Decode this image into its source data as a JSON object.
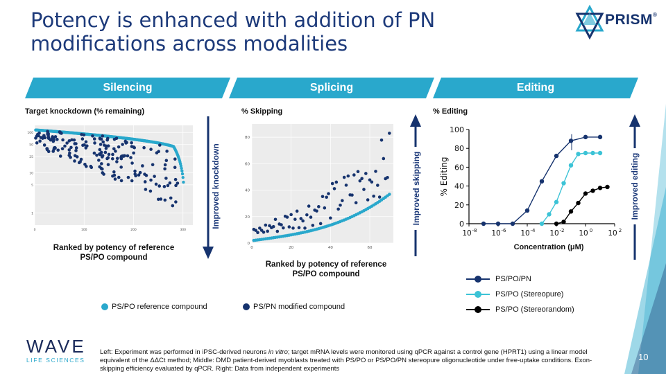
{
  "title_line1": "Potency is enhanced with addition of PN",
  "title_line2": "modifications across modalities",
  "logo": {
    "brand": "PRISM",
    "trademark": "®"
  },
  "banners": [
    {
      "label": "Silencing",
      "color": "#29a8cc"
    },
    {
      "label": "Splicing",
      "color": "#29a8cc"
    },
    {
      "label": "Editing",
      "color": "#29a8cc"
    }
  ],
  "panels": {
    "silencing": {
      "heading": "Target knockdown (% remaining)",
      "caption_line1": "Ranked by potency of reference",
      "caption_line2": "PS/PO compound",
      "arrow_label": "Improved knockdown"
    },
    "splicing": {
      "heading": "% Skipping",
      "caption_line1": "Ranked by potency of reference",
      "caption_line2": "PS/PO compound",
      "arrow_label": "Improved skipping"
    },
    "editing": {
      "heading": "% Editing",
      "arrow_label": "Improved editing",
      "xlabel": "Concentration (μM)",
      "ylabel": "% Editing"
    }
  },
  "legend_bottom": [
    {
      "label": "PS/PO reference compound",
      "color": "#29a8cc"
    },
    {
      "label": "PS/PN modified compound",
      "color": "#16336e"
    }
  ],
  "legend_editing": [
    {
      "label": "PS/PO/PN",
      "color": "#16336e"
    },
    {
      "label": "PS/PO (Stereopure)",
      "color": "#3cc3d6"
    },
    {
      "label": "PS/PO (Stereorandom)",
      "color": "#000000"
    }
  ],
  "footer": {
    "company_name": "WAVE",
    "company_sub": "LIFE SCIENCES",
    "page_number": "10",
    "footnote_a": "Left: Experiment was performed in iPSC-derived neurons ",
    "footnote_italic": "in vitro",
    "footnote_b": "; target mRNA levels were monitored using qPCR against a control gene (HPRT1) using a linear model equivalent of the ΔΔCt method; Middle: DMD patient-derived myoblasts treated with PS/PO or PS/PO/PN stereopure oligonucleotide under free-uptake conditions. Exon-skipping efficiency evaluated by qPCR. Right: Data from independent experiments"
  },
  "chart_data": [
    {
      "type": "scatter",
      "name": "silencing",
      "xlabel": "",
      "ylabel": "",
      "x_ticks": [
        "0",
        "100",
        "200",
        "300"
      ],
      "y_ticks": [
        "100",
        "50",
        "25",
        "10",
        "5",
        "1"
      ],
      "xlim": [
        0,
        320
      ],
      "ylim_log": [
        0.5,
        150
      ],
      "series": [
        {
          "name": "PS/PO reference compound",
          "color": "#29a8cc",
          "curve": "reference_sorted"
        },
        {
          "name": "PS/PN modified compound",
          "color": "#16336e",
          "curve": "modified_scatter"
        }
      ]
    },
    {
      "type": "scatter",
      "name": "splicing",
      "x_ticks": [
        "0",
        "20",
        "40",
        "60"
      ],
      "y_ticks": [
        "0",
        "20",
        "40",
        "60",
        "80"
      ],
      "xlim": [
        0,
        72
      ],
      "ylim": [
        0,
        90
      ],
      "series": [
        {
          "name": "PS/PO reference compound",
          "color": "#29a8cc",
          "curve": "reference_sorted"
        },
        {
          "name": "PS/PN modified compound",
          "color": "#16336e",
          "curve": "modified_scatter"
        }
      ]
    },
    {
      "type": "line",
      "name": "editing",
      "x_ticks": [
        "10^-8",
        "10^-6",
        "10^-4",
        "10^-2",
        "10^0",
        "10^2"
      ],
      "y_ticks": [
        "0",
        "20",
        "40",
        "60",
        "80",
        "100"
      ],
      "xlim_log10": [
        -8,
        2
      ],
      "ylim": [
        0,
        100
      ],
      "series": [
        {
          "name": "PS/PO/PN",
          "color": "#16336e",
          "x_log10": [
            -7.0,
            -6.0,
            -5.0,
            -4.0,
            -3.0,
            -2.0,
            -1.0,
            0.0,
            1.0
          ],
          "y": [
            0,
            0,
            0,
            14,
            45,
            72,
            88,
            92,
            92
          ]
        },
        {
          "name": "PS/PO (Stereopure)",
          "color": "#3cc3d6",
          "x_log10": [
            -3.0,
            -2.5,
            -2.0,
            -1.5,
            -1.0,
            -0.5,
            0.0,
            0.5,
            1.0
          ],
          "y": [
            0,
            10,
            23,
            43,
            62,
            74,
            75,
            75,
            75
          ]
        },
        {
          "name": "PS/PO (Stereorandom)",
          "color": "#000000",
          "x_log10": [
            -2.0,
            -1.5,
            -1.0,
            -0.5,
            0.0,
            0.5,
            1.0,
            1.5
          ],
          "y": [
            0,
            2,
            13,
            22,
            32,
            35,
            38,
            39
          ]
        }
      ]
    }
  ]
}
